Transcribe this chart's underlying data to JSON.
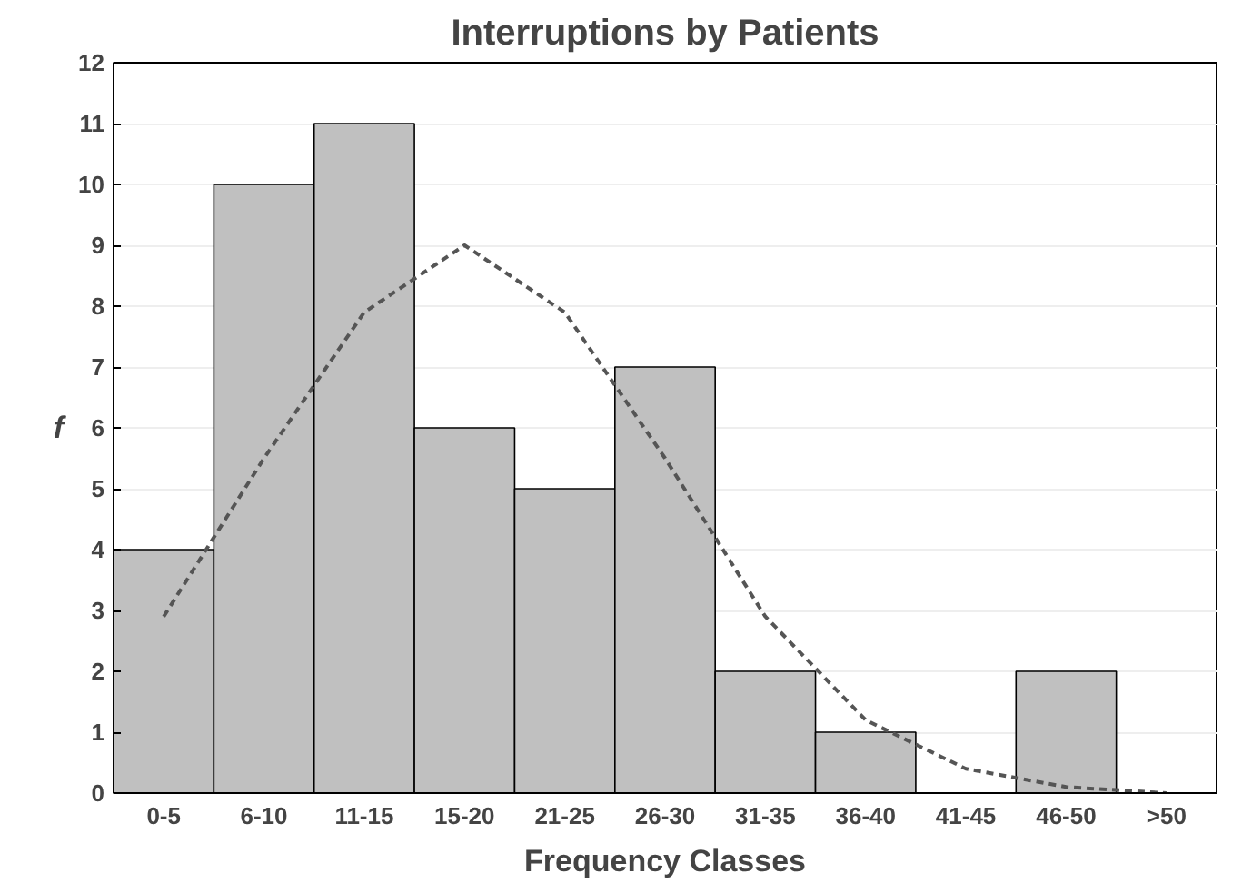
{
  "chart_data": {
    "type": "bar",
    "title": "Interruptions by Patients",
    "xlabel": "Frequency Classes",
    "ylabel": "f",
    "categories": [
      "0-5",
      "6-10",
      "11-15",
      "15-20",
      "21-25",
      "26-30",
      "31-35",
      "36-40",
      "41-45",
      "46-50",
      ">50"
    ],
    "series": [
      {
        "color": "#c0c0c0",
        "values": [
          4,
          10,
          11,
          6,
          5,
          7,
          2,
          1,
          0,
          2,
          0
        ]
      },
      {
        "type": "line",
        "color": "#555555",
        "line_style": "dashed",
        "values": [
          2.9,
          5.5,
          7.9,
          9.0,
          7.9,
          5.5,
          2.9,
          1.2,
          0.4,
          0.1,
          0.0
        ]
      }
    ],
    "ylim": [
      0,
      12
    ],
    "yticks": [
      0,
      1,
      2,
      3,
      4,
      5,
      6,
      7,
      8,
      9,
      10,
      11,
      12
    ],
    "grid": "y"
  }
}
